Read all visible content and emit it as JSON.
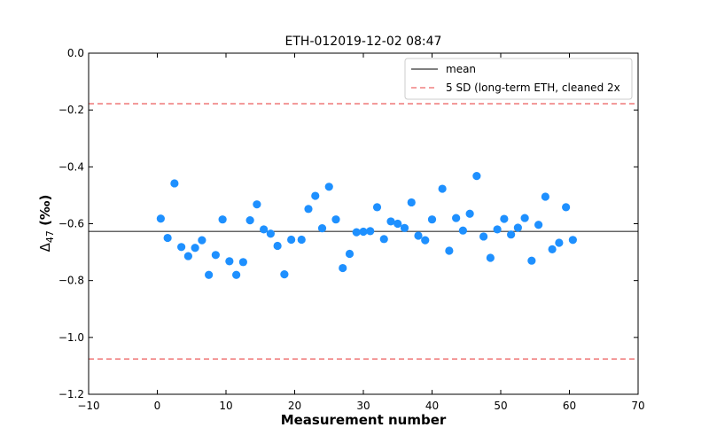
{
  "chart_data": {
    "type": "scatter",
    "title": "ETH-012019-12-02 08:47",
    "xlabel": "Measurement number",
    "ylabel_main": "Δ",
    "ylabel_sub": "47",
    "ylabel_unit": " (‰)",
    "xlim": [
      -10,
      70
    ],
    "ylim": [
      -1.2,
      0.0
    ],
    "x_ticks": [
      -10,
      0,
      10,
      20,
      30,
      40,
      50,
      60,
      70
    ],
    "x_tick_labels": [
      "−10",
      "0",
      "10",
      "20",
      "30",
      "40",
      "50",
      "60",
      "70"
    ],
    "y_ticks": [
      -1.2,
      -1.0,
      -0.8,
      -0.6,
      -0.4,
      -0.2,
      0.0
    ],
    "y_tick_labels": [
      "−1.2",
      "−1.0",
      "−0.8",
      "−0.6",
      "−0.4",
      "−0.2",
      "0.0"
    ],
    "grid": false,
    "legend_position": "top-right",
    "legend": [
      {
        "label": "mean",
        "style": "solid",
        "color": "#333333"
      },
      {
        "label": "5 SD (long-term ETH, cleaned 2x",
        "style": "dashed",
        "color": "#f08080"
      }
    ],
    "mean": -0.627,
    "sd_lines": [
      -0.178,
      -1.076
    ],
    "point_color": "#1e90ff",
    "series": [
      {
        "x": [
          0.5,
          1.5,
          2.5,
          3.5,
          4.5,
          5.5,
          6.5,
          7.5,
          8.5,
          9.5,
          10.5,
          11.5,
          12.5,
          13.5,
          14.5,
          15.5,
          16.5,
          17.5,
          18.5,
          19.5,
          21,
          22,
          23,
          24,
          25,
          26,
          27,
          28,
          29,
          30,
          31,
          32,
          33,
          34,
          35,
          36,
          37,
          38,
          39,
          40,
          41.5,
          42.5,
          43.5,
          44.5,
          45.5,
          46.5,
          47.5,
          48.5,
          49.5,
          50.5,
          51.5,
          52.5,
          53.5,
          54.5,
          55.5,
          56.5,
          57.5,
          58.5,
          59.5,
          60.5
        ],
        "y": [
          -0.582,
          -0.65,
          -0.458,
          -0.682,
          -0.714,
          -0.685,
          -0.658,
          -0.78,
          -0.71,
          -0.585,
          -0.732,
          -0.78,
          -0.735,
          -0.588,
          -0.532,
          -0.62,
          -0.635,
          -0.678,
          -0.778,
          -0.656,
          -0.656,
          -0.548,
          -0.502,
          -0.616,
          -0.47,
          -0.585,
          -0.756,
          -0.706,
          -0.63,
          -0.628,
          -0.626,
          -0.542,
          -0.654,
          -0.592,
          -0.6,
          -0.615,
          -0.525,
          -0.642,
          -0.658,
          -0.585,
          -0.477,
          -0.695,
          -0.58,
          -0.624,
          -0.565,
          -0.432,
          -0.645,
          -0.72,
          -0.62,
          -0.583,
          -0.638,
          -0.614,
          -0.58,
          -0.73,
          -0.604,
          -0.505,
          -0.69,
          -0.667,
          -0.542,
          -0.657
        ]
      }
    ]
  }
}
